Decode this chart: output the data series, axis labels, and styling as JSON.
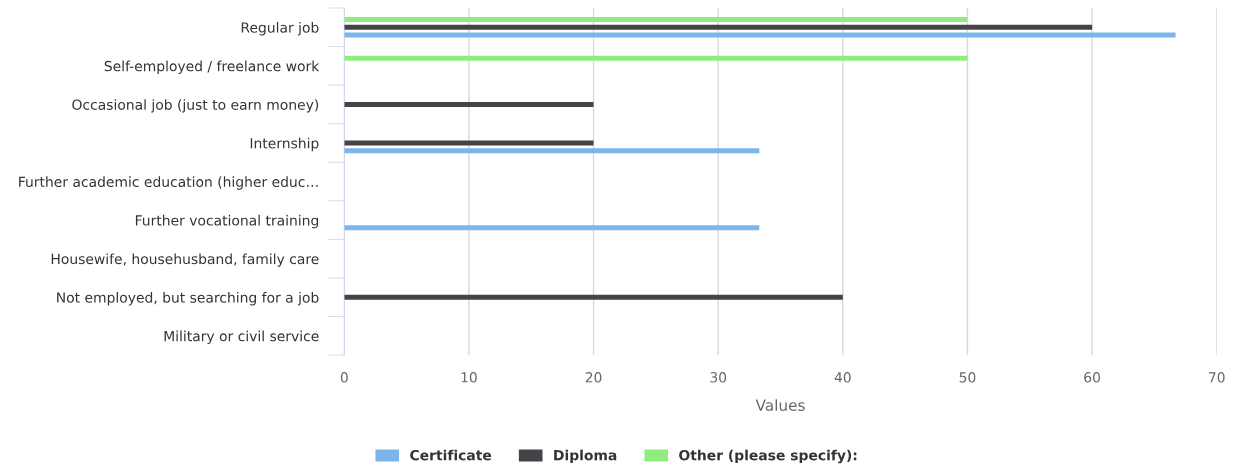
{
  "chart_data": {
    "type": "bar",
    "orientation": "horizontal",
    "xlabel": "Values",
    "categories": [
      "Regular job",
      "Self-employed / freelance work",
      "Occasional job (just to earn money)",
      "Internship",
      "Further academic education (higher educ…",
      "Further vocational training",
      "Housewife, househusband, family care",
      "Not employed, but searching for a job",
      "Military or civil service"
    ],
    "series": [
      {
        "name": "Certificate",
        "color": "#7cb5ec",
        "values": [
          66.7,
          null,
          null,
          33.3,
          null,
          33.3,
          null,
          null,
          null
        ]
      },
      {
        "name": "Diploma",
        "color": "#434348",
        "values": [
          60,
          null,
          20,
          20,
          null,
          null,
          null,
          40,
          null
        ]
      },
      {
        "name": "Other (please specify):",
        "color": "#90ed7d",
        "values": [
          50,
          50,
          null,
          null,
          null,
          null,
          null,
          null,
          null
        ]
      }
    ],
    "xlim": [
      0,
      70
    ],
    "xticks": [
      0,
      10,
      20,
      30,
      40,
      50,
      60,
      70
    ],
    "grid": "x",
    "legend": "bottom"
  }
}
